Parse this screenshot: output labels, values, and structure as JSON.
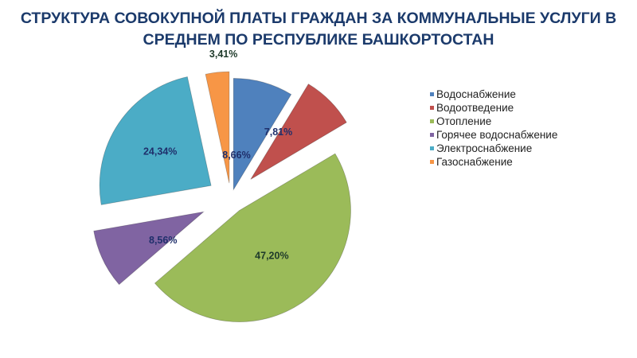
{
  "chart_data": {
    "type": "pie",
    "title": "СТРУКТУРА СОВОКУПНОЙ ПЛАТЫ ГРАЖДАН ЗА КОММУНАЛЬНЫЕ УСЛУГИ В СРЕДНЕМ ПО РЕСПУБЛИКЕ БАШКОРТОСТАН",
    "title_lines": [
      "СТРУКТУРА СОВОКУПНОЙ ПЛАТЫ ГРАЖДАН ЗА КОММУНАЛЬНЫЕ УСЛУГИ В",
      "СРЕДНЕМ ПО РЕСПУБЛИКЕ БАШКОРТОСТАН"
    ],
    "legend_position": "right",
    "exploded": true,
    "slices": [
      {
        "label": "Водоснабжение",
        "value": 8.66,
        "text": "8,66%",
        "color": "#4f81bd"
      },
      {
        "label": "Водоотведение",
        "value": 7.81,
        "text": "7,81%",
        "color": "#c0504d"
      },
      {
        "label": "Отопление",
        "value": 47.2,
        "text": "47,20%",
        "color": "#9bbb59"
      },
      {
        "label": "Горячее водоснабжение",
        "value": 8.56,
        "text": "8,56%",
        "color": "#8064a2"
      },
      {
        "label": "Электроснабжение",
        "value": 24.34,
        "text": "24,34%",
        "color": "#4bacc6"
      },
      {
        "label": "Газоснабжение",
        "value": 3.41,
        "text": "3,41%",
        "color": "#f79646"
      }
    ]
  }
}
